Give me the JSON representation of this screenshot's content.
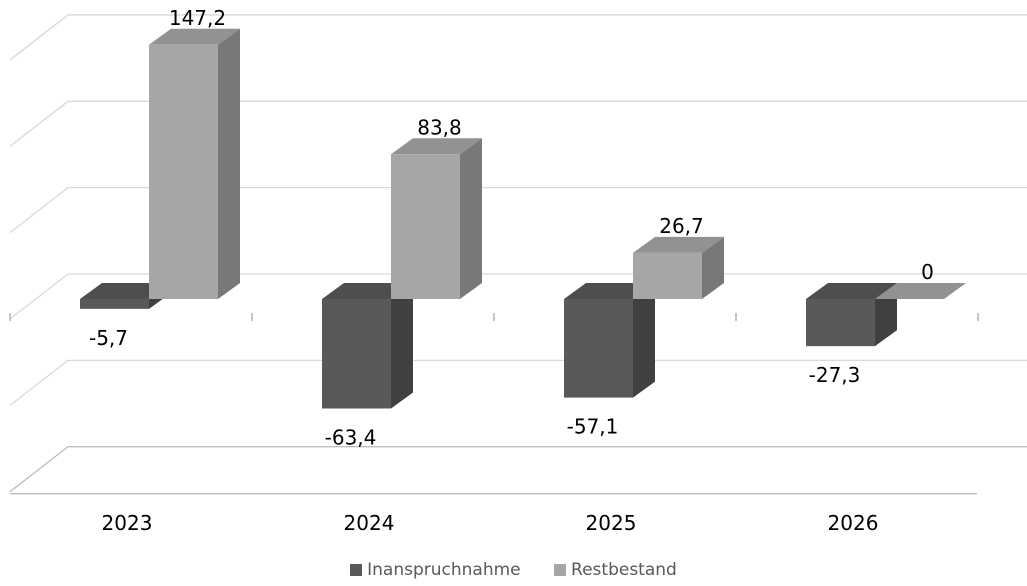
{
  "chart_data": {
    "type": "bar",
    "categories": [
      "2023",
      "2024",
      "2025",
      "2026"
    ],
    "series": [
      {
        "name": "Inanspruchnahme",
        "values": [
          -5.7,
          -63.4,
          -57.1,
          -27.3
        ],
        "labels": [
          "-5,7",
          "-63,4",
          "-57,1",
          "-27,3"
        ],
        "color": "#595959"
      },
      {
        "name": "Restbestand",
        "values": [
          147.2,
          83.8,
          26.7,
          0
        ],
        "labels": [
          "147,2",
          "83,8",
          "26,7",
          "0"
        ],
        "color": "#a6a6a6"
      }
    ],
    "title": "",
    "xlabel": "",
    "ylabel": "",
    "ylim": [
      -100,
      150
    ],
    "grid": true,
    "legend": "bottom"
  }
}
